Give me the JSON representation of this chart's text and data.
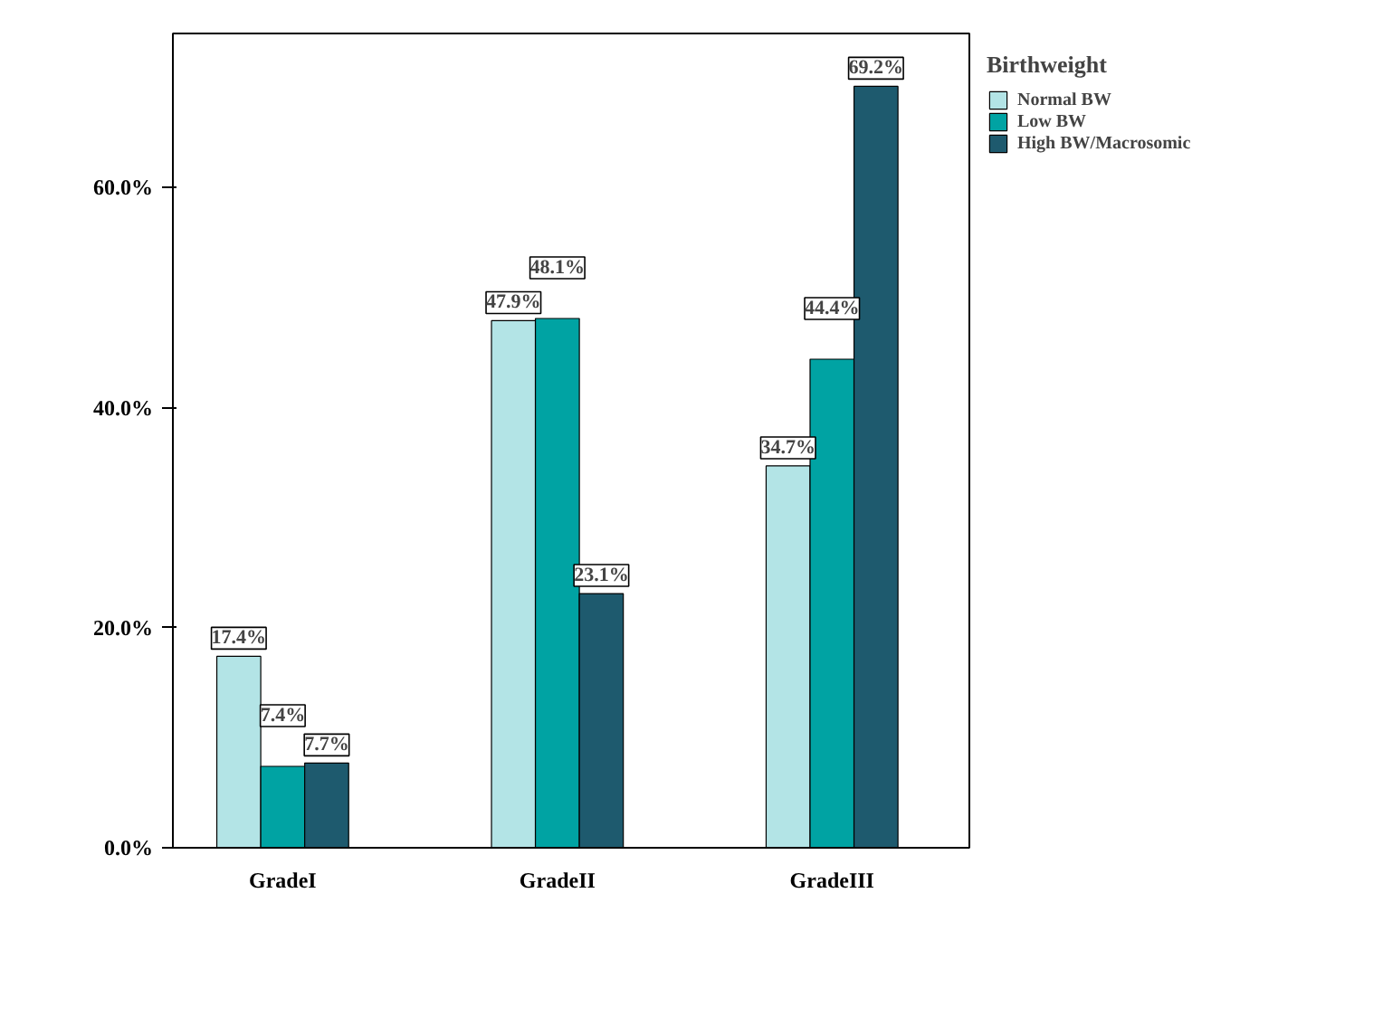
{
  "chart_data": {
    "type": "bar",
    "legend_title": "Birthweight",
    "categories": [
      "GradeI",
      "GradeII",
      "GradeIII"
    ],
    "series": [
      {
        "name": "Normal BW",
        "color": "#b3e4e6",
        "values": [
          17.4,
          47.9,
          34.7
        ]
      },
      {
        "name": "Low BW",
        "color": "#00a3a3",
        "values": [
          7.4,
          48.1,
          44.4
        ]
      },
      {
        "name": "High BW/Macrosomic",
        "color": "#1e5a6e",
        "values": [
          7.7,
          23.1,
          69.2
        ]
      }
    ],
    "ylim": [
      0,
      74
    ],
    "yticks": [
      {
        "value": 0,
        "label": "0.0%"
      },
      {
        "value": 20,
        "label": "20.0%"
      },
      {
        "value": 40,
        "label": "40.0%"
      },
      {
        "value": 60,
        "label": "60.0%"
      }
    ],
    "value_labels": [
      [
        "17.4%",
        "47.9%",
        "34.7%"
      ],
      [
        "7.4%",
        "48.1%",
        "44.4%"
      ],
      [
        "7.7%",
        "23.1%",
        "69.2%"
      ]
    ],
    "grid": false,
    "legend": "top right"
  }
}
